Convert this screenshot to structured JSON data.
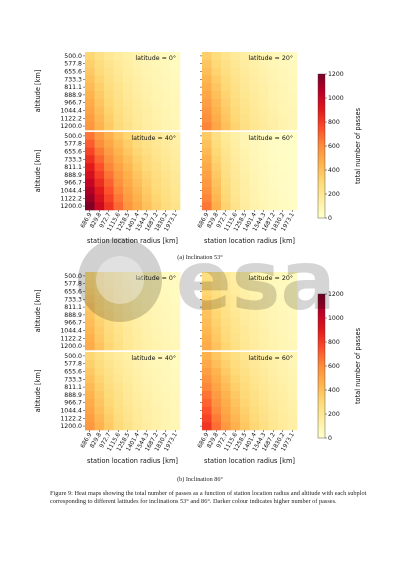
{
  "figure": {
    "title": "Figure 9:",
    "caption": "Figure 9: Heat maps showing the total number of passes as a function of station location radius and altitude with each subplot corresponding to different latitudes for inclinations 53° and 86°. Darker colour indicates higher number of passes.",
    "watermark_text": "esa"
  },
  "colors": {
    "cmap": [
      "#ffffcc",
      "#ffeda0",
      "#fed976",
      "#feb24c",
      "#fd8d3c",
      "#fc4e2a",
      "#e31a1c",
      "#bd0026",
      "#800026"
    ],
    "text": "#111111"
  },
  "chart_data": [
    {
      "type": "heatmap",
      "subfigure": "(a) Inclination 53°",
      "cbar_label": "total number of passes",
      "cbar_ticks": [
        "0",
        "200",
        "400",
        "600",
        "800",
        "1000",
        "1200"
      ],
      "vmin": 0,
      "vmax": 1200,
      "xlabel": "station location radius [km]",
      "ylabel": "altitude [km]",
      "x_ticks": [
        "686.9",
        "829.8",
        "972.7",
        "1115.6",
        "1258.5",
        "1401.4",
        "1544.3",
        "1687.2",
        "1830.2",
        "1973.1"
      ],
      "y_ticks": [
        "500.0",
        "577.8",
        "655.6",
        "733.3",
        "811.1",
        "888.9",
        "966.7",
        "1044.4",
        "1122.2",
        "1200.0"
      ],
      "panels": [
        {
          "title": "latitude = 0°",
          "peak": 560,
          "falloff": 0.2,
          "cutoff": 20
        },
        {
          "title": "latitude = 20°",
          "peak": 620,
          "falloff": 0.2,
          "cutoff": 20
        },
        {
          "title": "latitude = 40°",
          "peak": 1200,
          "falloff": 0.17,
          "cutoff": 20
        },
        {
          "title": "latitude = 60°",
          "peak": 650,
          "falloff": 0.3,
          "cutoff": 5
        }
      ]
    },
    {
      "type": "heatmap",
      "subfigure": "(b) Inclination 86°",
      "cbar_label": "total number of passes",
      "cbar_ticks": [
        "0",
        "200",
        "400",
        "600",
        "800",
        "1000",
        "1200"
      ],
      "vmin": 0,
      "vmax": 1200,
      "xlabel": "station location radius [km]",
      "ylabel": "altitude [km]",
      "x_ticks": [
        "686.9",
        "829.8",
        "972.7",
        "1115.6",
        "1258.5",
        "1401.4",
        "1544.3",
        "1687.2",
        "1830.2",
        "1973.1"
      ],
      "y_ticks": [
        "500.0",
        "577.8",
        "655.6",
        "733.3",
        "811.1",
        "888.9",
        "966.7",
        "1044.4",
        "1122.2",
        "1200.0"
      ],
      "panels": [
        {
          "title": "latitude = 0°",
          "peak": 480,
          "falloff": 0.2,
          "cutoff": 20
        },
        {
          "title": "latitude = 20°",
          "peak": 480,
          "falloff": 0.2,
          "cutoff": 20
        },
        {
          "title": "latitude = 40°",
          "peak": 560,
          "falloff": 0.2,
          "cutoff": 20
        },
        {
          "title": "latitude = 60°",
          "peak": 820,
          "falloff": 0.18,
          "cutoff": 20
        }
      ]
    }
  ]
}
